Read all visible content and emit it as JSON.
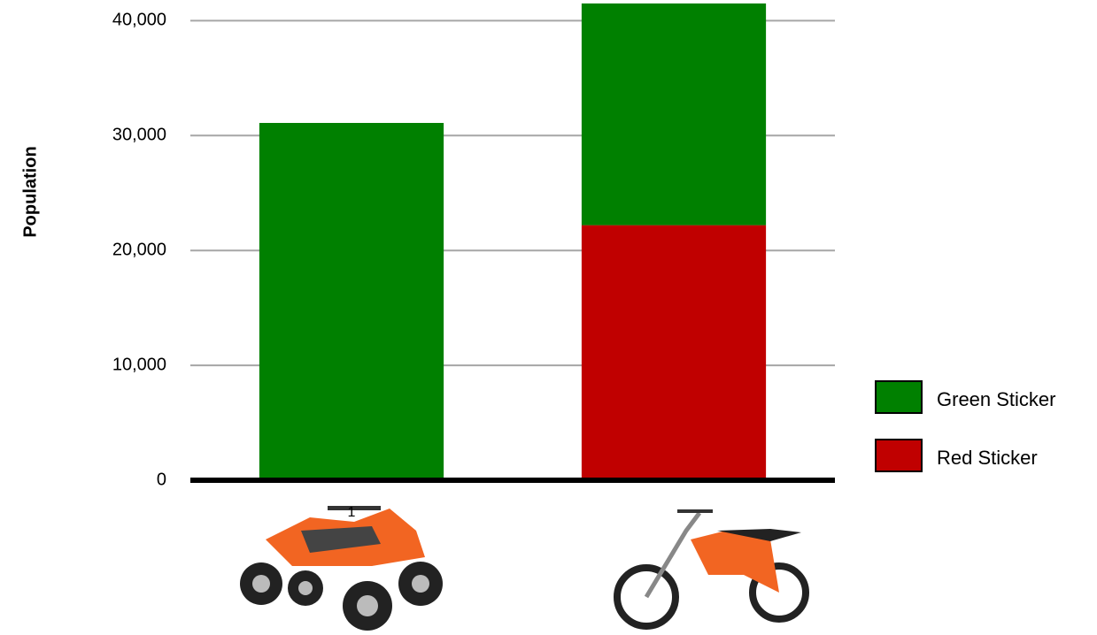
{
  "chart_data": {
    "type": "stacked_bar",
    "y_label": "Population",
    "categories": [
      "1",
      null
    ],
    "series": [
      {
        "name": "Green Sticker",
        "color": "#008000",
        "values": [
          31100,
          19300
        ]
      },
      {
        "name": "Red Sticker",
        "color": "#c00000",
        "values": [
          0,
          22200
        ]
      }
    ],
    "ylim": [
      0,
      41800
    ],
    "yticks": [
      0,
      {
        "value": 10000,
        "label": "10,000"
      },
      {
        "value": 20000,
        "label": "20,000"
      },
      {
        "value": 30000,
        "label": "30,000"
      },
      {
        "value": 40000,
        "label": "40,000"
      }
    ],
    "grid": true,
    "legend": "right"
  }
}
